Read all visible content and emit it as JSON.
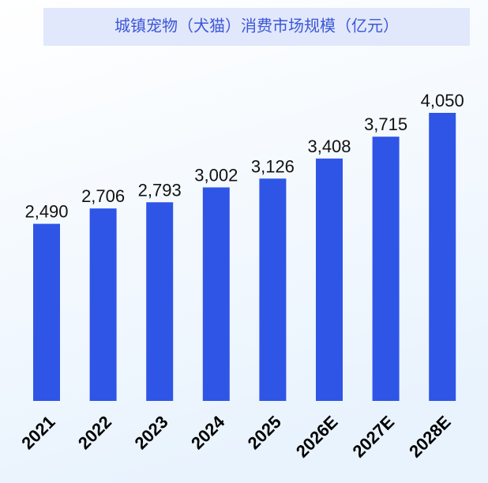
{
  "chart_data": {
    "type": "bar",
    "title": "城镇宠物（犬猫）消费市场规模（亿元）",
    "categories": [
      "2021",
      "2022",
      "2023",
      "2024",
      "2025",
      "2026E",
      "2027E",
      "2028E"
    ],
    "values": [
      2490,
      2706,
      2793,
      3002,
      3126,
      3408,
      3715,
      4050
    ],
    "value_labels": [
      "2,490",
      "2,706",
      "2,793",
      "3,002",
      "3,126",
      "3,408",
      "3,715",
      "4,050"
    ],
    "color": "#2f55e6"
  }
}
